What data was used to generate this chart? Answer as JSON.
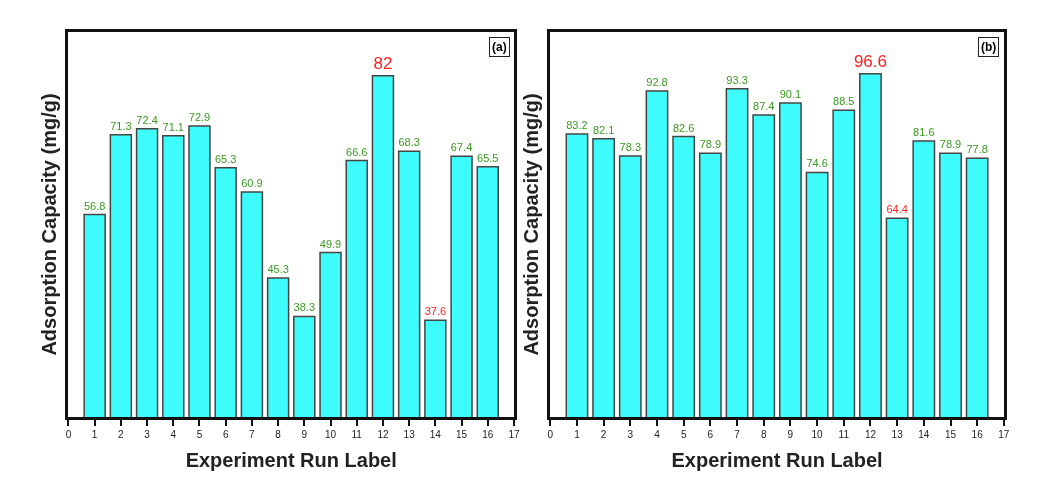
{
  "chart_data": [
    {
      "type": "bar",
      "xlabel": "Experiment Run Label",
      "ylabel": "Adsorption Capacity (mg/g)",
      "annotations": [
        "(a)"
      ],
      "x": [
        1,
        2,
        3,
        4,
        5,
        6,
        7,
        8,
        9,
        10,
        11,
        12,
        13,
        14,
        15,
        16
      ],
      "values": [
        56.8,
        71.3,
        72.4,
        71.1,
        72.9,
        65.3,
        60.9,
        45.3,
        38.3,
        49.9,
        66.6,
        82,
        68.3,
        37.6,
        67.4,
        65.5
      ],
      "color": "#3ffcfc",
      "data_labels": true,
      "xlim": [
        0,
        17
      ],
      "xticks": [
        0,
        1,
        2,
        3,
        4,
        5,
        6,
        7,
        8,
        9,
        10,
        11,
        12,
        13,
        14,
        15,
        16,
        17
      ],
      "ylim": [
        20,
        90
      ],
      "tick_labels": "x"
    },
    {
      "type": "bar",
      "xlabel": "Experiment Run Label",
      "ylabel": "Adsorption Capacity (mg/g)",
      "annotations": [
        "(b)"
      ],
      "x": [
        1,
        2,
        3,
        4,
        5,
        6,
        7,
        8,
        9,
        10,
        11,
        12,
        13,
        14,
        15,
        16
      ],
      "values": [
        83.2,
        82.1,
        78.3,
        92.8,
        82.6,
        78.9,
        93.3,
        87.4,
        90.1,
        74.6,
        88.5,
        96.6,
        64.4,
        81.6,
        78.9,
        77.8
      ],
      "color": "#3ffcfc",
      "data_labels": true,
      "xlim": [
        0,
        17
      ],
      "xticks": [
        0,
        1,
        2,
        3,
        4,
        5,
        6,
        7,
        8,
        9,
        10,
        11,
        12,
        13,
        14,
        15,
        16,
        17
      ],
      "ylim": [
        20,
        106
      ],
      "tick_labels": "x"
    }
  ]
}
